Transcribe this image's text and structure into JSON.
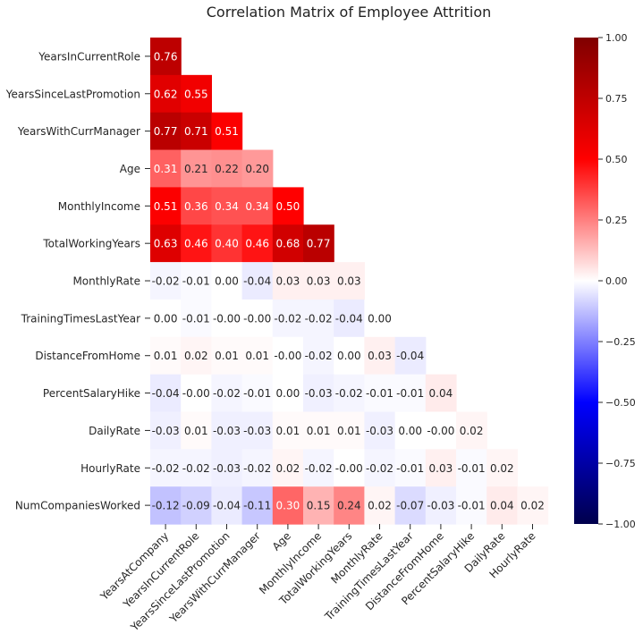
{
  "chart_data": {
    "type": "heatmap",
    "title": "Correlation Matrix of Employee Attrition",
    "row_labels": [
      "YearsInCurrentRole",
      "YearsSinceLastPromotion",
      "YearsWithCurrManager",
      "Age",
      "MonthlyIncome",
      "TotalWorkingYears",
      "MonthlyRate",
      "TrainingTimesLastYear",
      "DistanceFromHome",
      "PercentSalaryHike",
      "DailyRate",
      "HourlyRate",
      "NumCompaniesWorked"
    ],
    "col_labels": [
      "YearsAtCompany",
      "YearsInCurrentRole",
      "YearsSinceLastPromotion",
      "YearsWithCurrManager",
      "Age",
      "MonthlyIncome",
      "TotalWorkingYears",
      "MonthlyRate",
      "TrainingTimesLastYear",
      "DistanceFromHome",
      "PercentSalaryHike",
      "DailyRate",
      "HourlyRate"
    ],
    "values": [
      [
        0.76
      ],
      [
        0.62,
        0.55
      ],
      [
        0.77,
        0.71,
        0.51
      ],
      [
        0.31,
        0.21,
        0.22,
        0.2
      ],
      [
        0.51,
        0.36,
        0.34,
        0.34,
        0.5
      ],
      [
        0.63,
        0.46,
        0.4,
        0.46,
        0.68,
        0.77
      ],
      [
        -0.02,
        -0.01,
        0.0,
        -0.04,
        0.03,
        0.03,
        0.03
      ],
      [
        0.0,
        -0.01,
        -0.0,
        -0.0,
        -0.02,
        -0.02,
        -0.04,
        0.0
      ],
      [
        0.01,
        0.02,
        0.01,
        0.01,
        -0.0,
        -0.02,
        0.0,
        0.03,
        -0.04
      ],
      [
        -0.04,
        -0.0,
        -0.02,
        -0.01,
        0.0,
        -0.03,
        -0.02,
        -0.01,
        -0.01,
        0.04
      ],
      [
        -0.03,
        0.01,
        -0.03,
        -0.03,
        0.01,
        0.01,
        0.01,
        -0.03,
        0.0,
        -0.0,
        0.02
      ],
      [
        -0.02,
        -0.02,
        -0.03,
        -0.02,
        0.02,
        -0.02,
        -0.0,
        -0.02,
        -0.01,
        0.03,
        -0.01,
        0.02
      ],
      [
        -0.12,
        -0.09,
        -0.04,
        -0.11,
        0.3,
        0.15,
        0.24,
        0.02,
        -0.07,
        -0.03,
        -0.01,
        0.04,
        0.02
      ]
    ],
    "value_labels": [
      [
        "0.76"
      ],
      [
        "0.62",
        "0.55"
      ],
      [
        "0.77",
        "0.71",
        "0.51"
      ],
      [
        "0.31",
        "0.21",
        "0.22",
        "0.20"
      ],
      [
        "0.51",
        "0.36",
        "0.34",
        "0.34",
        "0.50"
      ],
      [
        "0.63",
        "0.46",
        "0.40",
        "0.46",
        "0.68",
        "0.77"
      ],
      [
        "-0.02",
        "-0.01",
        "0.00",
        "-0.04",
        "0.03",
        "0.03",
        "0.03"
      ],
      [
        "0.00",
        "-0.01",
        "-0.00",
        "-0.00",
        "-0.02",
        "-0.02",
        "-0.04",
        "0.00"
      ],
      [
        "0.01",
        "0.02",
        "0.01",
        "0.01",
        "-0.00",
        "-0.02",
        "0.00",
        "0.03",
        "-0.04"
      ],
      [
        "-0.04",
        "-0.00",
        "-0.02",
        "-0.01",
        "0.00",
        "-0.03",
        "-0.02",
        "-0.01",
        "-0.01",
        "0.04"
      ],
      [
        "-0.03",
        "0.01",
        "-0.03",
        "-0.03",
        "0.01",
        "0.01",
        "0.01",
        "-0.03",
        "0.00",
        "-0.00",
        "0.02"
      ],
      [
        "-0.02",
        "-0.02",
        "-0.03",
        "-0.02",
        "0.02",
        "-0.02",
        "-0.00",
        "-0.02",
        "-0.01",
        "0.03",
        "-0.01",
        "0.02"
      ],
      [
        "-0.12",
        "-0.09",
        "-0.04",
        "-0.11",
        "0.30",
        "0.15",
        "0.24",
        "0.02",
        "-0.07",
        "-0.03",
        "-0.01",
        "0.04",
        "0.02"
      ]
    ],
    "colormap": "seismic",
    "vmin": -1.0,
    "vmax": 1.0,
    "colorbar_ticks": [
      1.0,
      0.75,
      0.5,
      0.25,
      0.0,
      -0.25,
      -0.5,
      -0.75,
      -1.0
    ],
    "colorbar_tick_labels": [
      "1.00",
      "0.75",
      "0.50",
      "0.25",
      "0.00",
      "−0.25",
      "−0.50",
      "−0.75",
      "−1.00"
    ],
    "colormap_stops": [
      {
        "value": -1.0,
        "color": "#00004c"
      },
      {
        "value": -0.5,
        "color": "#0000ff"
      },
      {
        "value": 0.0,
        "color": "#ffffff"
      },
      {
        "value": 0.5,
        "color": "#ff0000"
      },
      {
        "value": 1.0,
        "color": "#800000"
      }
    ],
    "grid": false,
    "legend": "right colorbar"
  }
}
